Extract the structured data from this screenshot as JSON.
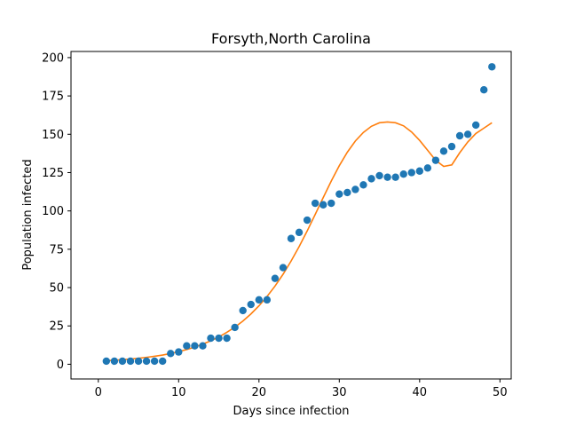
{
  "chart_data": {
    "type": "scatter",
    "title": "Forsyth,North Carolina",
    "xlabel": "Days since infection",
    "ylabel": "Population infected",
    "xlim": [
      -3.4,
      51.4
    ],
    "ylim": [
      -9.6,
      204.0
    ],
    "xticks": [
      0,
      10,
      20,
      30,
      40,
      50
    ],
    "yticks": [
      0,
      25,
      50,
      75,
      100,
      125,
      150,
      175,
      200
    ],
    "grid": false,
    "legend": "none",
    "series": [
      {
        "kind": "scatter",
        "color": "#1f77b4",
        "x": [
          1,
          2,
          3,
          4,
          5,
          6,
          7,
          8,
          9,
          10,
          11,
          12,
          13,
          14,
          15,
          16,
          17,
          18,
          19,
          20,
          21,
          22,
          23,
          24,
          25,
          26,
          27,
          28,
          29,
          30,
          31,
          32,
          33,
          34,
          35,
          36,
          37,
          38,
          39,
          40,
          41,
          42,
          43,
          44,
          45,
          46,
          47,
          48,
          49
        ],
        "y": [
          2,
          2,
          2,
          2,
          2,
          2,
          2,
          2,
          7,
          8,
          12,
          12,
          12,
          17,
          17,
          17,
          24,
          35,
          39,
          42,
          42,
          56,
          63,
          82,
          86,
          94,
          105,
          104,
          105,
          111,
          112,
          114,
          117,
          121,
          123,
          122,
          122,
          124,
          125,
          126,
          128,
          133,
          139,
          142,
          149,
          150,
          156,
          179,
          194
        ]
      },
      {
        "kind": "line",
        "color": "#ff7f0e",
        "x": [
          1,
          2,
          3,
          4,
          5,
          6,
          7,
          8,
          9,
          10,
          11,
          12,
          13,
          14,
          15,
          16,
          17,
          18,
          19,
          20,
          21,
          22,
          23,
          24,
          25,
          26,
          27,
          28,
          29,
          30,
          31,
          32,
          33,
          34,
          35,
          36,
          37,
          38,
          39,
          40,
          41,
          42,
          43,
          44,
          45,
          46,
          47,
          48,
          49
        ],
        "y": [
          2.4,
          2.6,
          3.0,
          3.4,
          3.9,
          4.5,
          5.2,
          6.0,
          7.0,
          8.2,
          9.6,
          11.2,
          13.1,
          15.3,
          17.8,
          20.8,
          24.2,
          28.2,
          32.8,
          38.1,
          44.2,
          51.0,
          58.7,
          67.3,
          76.7,
          86.9,
          97.7,
          108.7,
          119.5,
          129.5,
          138.3,
          145.6,
          151.2,
          155.2,
          157.5,
          158.0,
          157.5,
          155.5,
          151.5,
          146.0,
          139.5,
          133.0,
          129.0,
          130.0,
          138.0,
          145.0,
          150.5,
          154.0,
          157.5
        ]
      }
    ]
  }
}
